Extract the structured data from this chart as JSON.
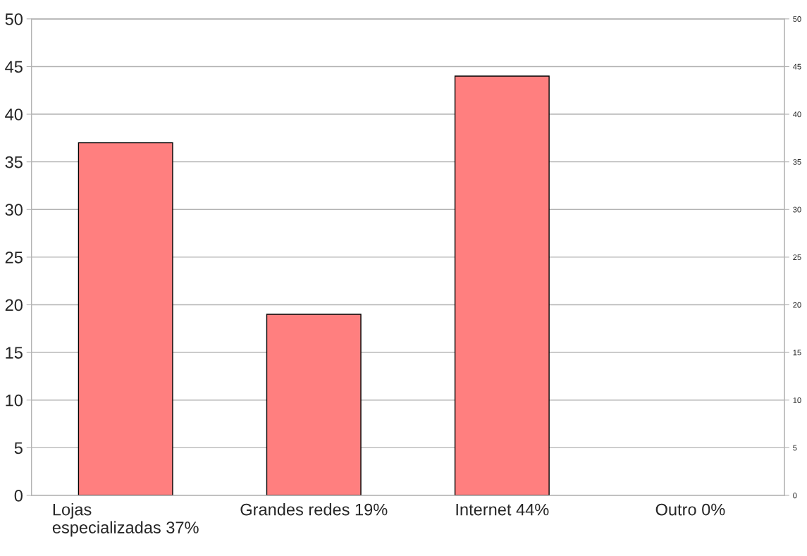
{
  "chart_data": {
    "type": "bar",
    "categories": [
      "Lojas\nespecializadas 37%",
      "Grandes redes 19%",
      "Internet 44%",
      "Outro 0%"
    ],
    "values": [
      37,
      19,
      44,
      0
    ],
    "color": "#ff7f7f",
    "ylim": [
      0,
      50
    ],
    "yticks": [
      0,
      5,
      10,
      15,
      20,
      25,
      30,
      35,
      40,
      45,
      50
    ],
    "y2lim": [
      0,
      50
    ],
    "y2ticks": [
      0,
      5,
      10,
      15,
      20,
      25,
      30,
      35,
      40,
      45,
      50
    ],
    "grid": "y",
    "legend": false
  }
}
